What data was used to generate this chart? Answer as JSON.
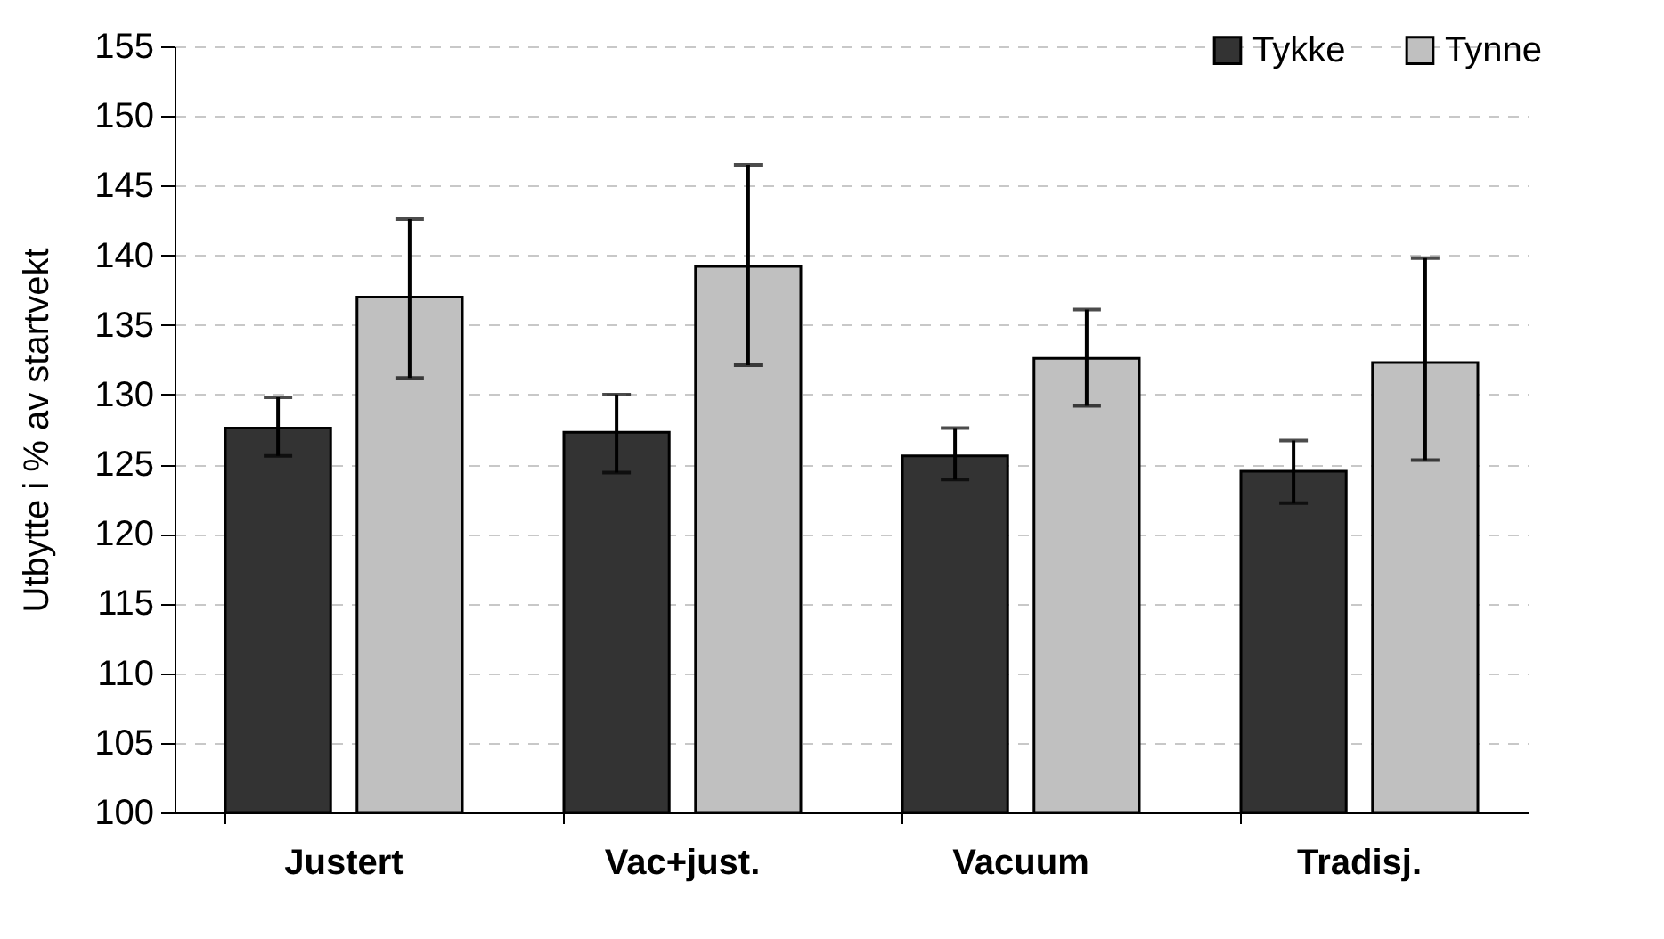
{
  "chart_data": {
    "type": "bar",
    "ylabel": "Utbytte i % av startvekt",
    "categories": [
      "Justert",
      "Vac+just.",
      "Vacuum",
      "Tradisj."
    ],
    "series": [
      {
        "name": "Tykke",
        "color": "#333333",
        "values": [
          127.6,
          127.3,
          125.6,
          124.5
        ],
        "errors": [
          [
            125.6,
            129.8
          ],
          [
            124.4,
            130.0
          ],
          [
            123.9,
            127.6
          ],
          [
            122.2,
            126.7
          ]
        ]
      },
      {
        "name": "Tynne",
        "color": "#c0c0c0",
        "values": [
          137.0,
          139.2,
          132.6,
          132.3
        ],
        "errors": [
          [
            131.2,
            142.6
          ],
          [
            132.1,
            146.5
          ],
          [
            129.2,
            136.1
          ],
          [
            125.3,
            139.8
          ]
        ]
      }
    ],
    "ylim": [
      100,
      155
    ],
    "yticks": [
      100,
      105,
      110,
      115,
      120,
      125,
      130,
      135,
      140,
      145,
      150,
      155
    ],
    "grid": "y",
    "legend": "top right"
  }
}
